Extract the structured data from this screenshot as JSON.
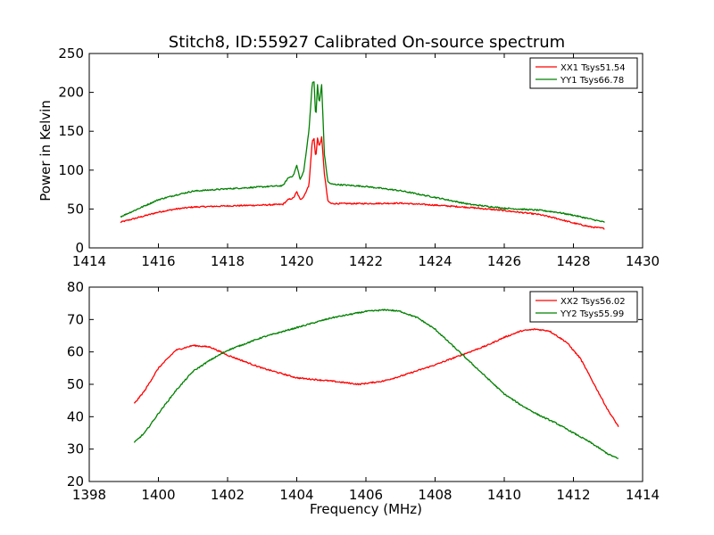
{
  "figure_title": "Stitch8, ID:55927 Calibrated On-source spectrum",
  "chart_data": [
    {
      "type": "line",
      "title": "Stitch8, ID:55927 Calibrated On-source spectrum",
      "xlabel": "",
      "ylabel": "Power in Kelvin",
      "xlim": [
        1414,
        1430
      ],
      "ylim": [
        0,
        250
      ],
      "xticks": [
        1414,
        1416,
        1418,
        1420,
        1422,
        1424,
        1426,
        1428,
        1430
      ],
      "yticks": [
        0,
        50,
        100,
        150,
        200,
        250
      ],
      "legend_position": "top-right",
      "series": [
        {
          "name": "XX1 Tsys51.54",
          "color": "#ff0000",
          "x": [
            1414.9,
            1415.5,
            1416.0,
            1416.5,
            1417.0,
            1418.0,
            1419.0,
            1419.6,
            1419.75,
            1419.9,
            1420.0,
            1420.1,
            1420.2,
            1420.35,
            1420.45,
            1420.5,
            1420.55,
            1420.6,
            1420.65,
            1420.72,
            1420.8,
            1420.9,
            1421.0,
            1422.0,
            1423.0,
            1424.0,
            1425.0,
            1426.0,
            1427.0,
            1427.5,
            1428.0,
            1428.5,
            1428.9
          ],
          "y": [
            33,
            40,
            46,
            50,
            52.5,
            54,
            55,
            56,
            62,
            64,
            72,
            62,
            66,
            80,
            138,
            140,
            115,
            142,
            130,
            142,
            95,
            60,
            57,
            57,
            57.5,
            55,
            52,
            48,
            43,
            38,
            32,
            27,
            25
          ]
        },
        {
          "name": "YY1 Tsys66.78",
          "color": "#008000",
          "x": [
            1414.9,
            1415.5,
            1416.0,
            1416.5,
            1417.0,
            1418.0,
            1419.0,
            1419.6,
            1419.75,
            1419.9,
            1420.0,
            1420.1,
            1420.2,
            1420.35,
            1420.45,
            1420.5,
            1420.55,
            1420.6,
            1420.65,
            1420.72,
            1420.8,
            1420.9,
            1421.0,
            1422.0,
            1423.0,
            1424.0,
            1425.0,
            1426.0,
            1427.0,
            1427.5,
            1428.0,
            1428.5,
            1428.9
          ],
          "y": [
            40,
            52,
            62,
            68,
            73,
            76,
            78.5,
            80,
            90,
            93,
            106,
            88,
            98,
            150,
            212,
            214,
            165,
            210,
            185,
            210,
            120,
            85,
            82,
            79,
            73.5,
            65,
            56,
            51,
            48.5,
            46,
            42,
            37,
            33
          ]
        }
      ]
    },
    {
      "type": "line",
      "title": "",
      "xlabel": "Frequency (MHz)",
      "ylabel": "",
      "xlim": [
        1398,
        1414
      ],
      "ylim": [
        20,
        80
      ],
      "xticks": [
        1398,
        1400,
        1402,
        1404,
        1406,
        1408,
        1410,
        1412,
        1414
      ],
      "yticks": [
        20,
        30,
        40,
        50,
        60,
        70,
        80
      ],
      "legend_position": "top-right",
      "series": [
        {
          "name": "XX2 Tsys56.02",
          "color": "#ff0000",
          "x": [
            1399.3,
            1399.6,
            1400.0,
            1400.5,
            1401.0,
            1401.5,
            1402.0,
            1403.0,
            1404.0,
            1405.0,
            1405.8,
            1406.5,
            1407.0,
            1408.0,
            1409.0,
            1409.5,
            1410.0,
            1410.5,
            1410.9,
            1411.3,
            1411.8,
            1412.2,
            1412.6,
            1413.0,
            1413.3
          ],
          "y": [
            44,
            48,
            55,
            60.5,
            62,
            61.5,
            59,
            55,
            52,
            51,
            50,
            51,
            52.5,
            56,
            60,
            62,
            64.5,
            66.5,
            67,
            66.5,
            63,
            58,
            50,
            42,
            37
          ]
        },
        {
          "name": "YY2 Tsys55.99",
          "color": "#008000",
          "x": [
            1399.3,
            1399.6,
            1400.0,
            1400.5,
            1401.0,
            1401.5,
            1402.0,
            1402.5,
            1403.0,
            1404.0,
            1405.0,
            1406.0,
            1406.6,
            1407.0,
            1407.5,
            1408.0,
            1408.5,
            1409.0,
            1409.5,
            1410.0,
            1410.5,
            1411.0,
            1411.5,
            1412.0,
            1412.5,
            1413.0,
            1413.3
          ],
          "y": [
            32,
            35,
            41,
            48,
            54,
            57.5,
            60.5,
            62.5,
            64.5,
            67.5,
            70.5,
            72.5,
            73,
            72.5,
            70.5,
            67,
            62,
            57,
            52,
            47,
            43.5,
            40.5,
            38,
            35,
            32,
            28.5,
            27
          ]
        }
      ]
    }
  ]
}
